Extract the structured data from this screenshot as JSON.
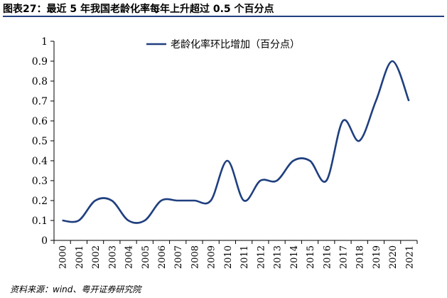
{
  "figure": {
    "title": "图表27：最近 5 年我国老龄化率每年上升超过 0.5 个百分点",
    "source": "资料来源：wind、粤开证券研究院"
  },
  "chart_data": {
    "type": "line",
    "categories": [
      "2000",
      "2001",
      "2002",
      "2003",
      "2004",
      "2005",
      "2006",
      "2007",
      "2008",
      "2009",
      "2010",
      "2011",
      "2012",
      "2013",
      "2014",
      "2015",
      "2016",
      "2017",
      "2018",
      "2019",
      "2020",
      "2021"
    ],
    "series": [
      {
        "name": "老龄化率环比增加（百分点）",
        "values": [
          0.1,
          0.1,
          0.2,
          0.2,
          0.1,
          0.1,
          0.2,
          0.2,
          0.2,
          0.2,
          0.4,
          0.2,
          0.3,
          0.3,
          0.4,
          0.4,
          0.3,
          0.6,
          0.5,
          0.7,
          0.9,
          0.7
        ],
        "color": "#1f3f7f"
      }
    ],
    "yticks": [
      "0",
      "0.1",
      "0.2",
      "0.3",
      "0.4",
      "0.5",
      "0.6",
      "0.7",
      "0.8",
      "0.9",
      "1"
    ],
    "ylim": [
      0,
      1
    ],
    "xlabel": "",
    "ylabel": "",
    "grid": false,
    "legend_position": "top-center"
  }
}
